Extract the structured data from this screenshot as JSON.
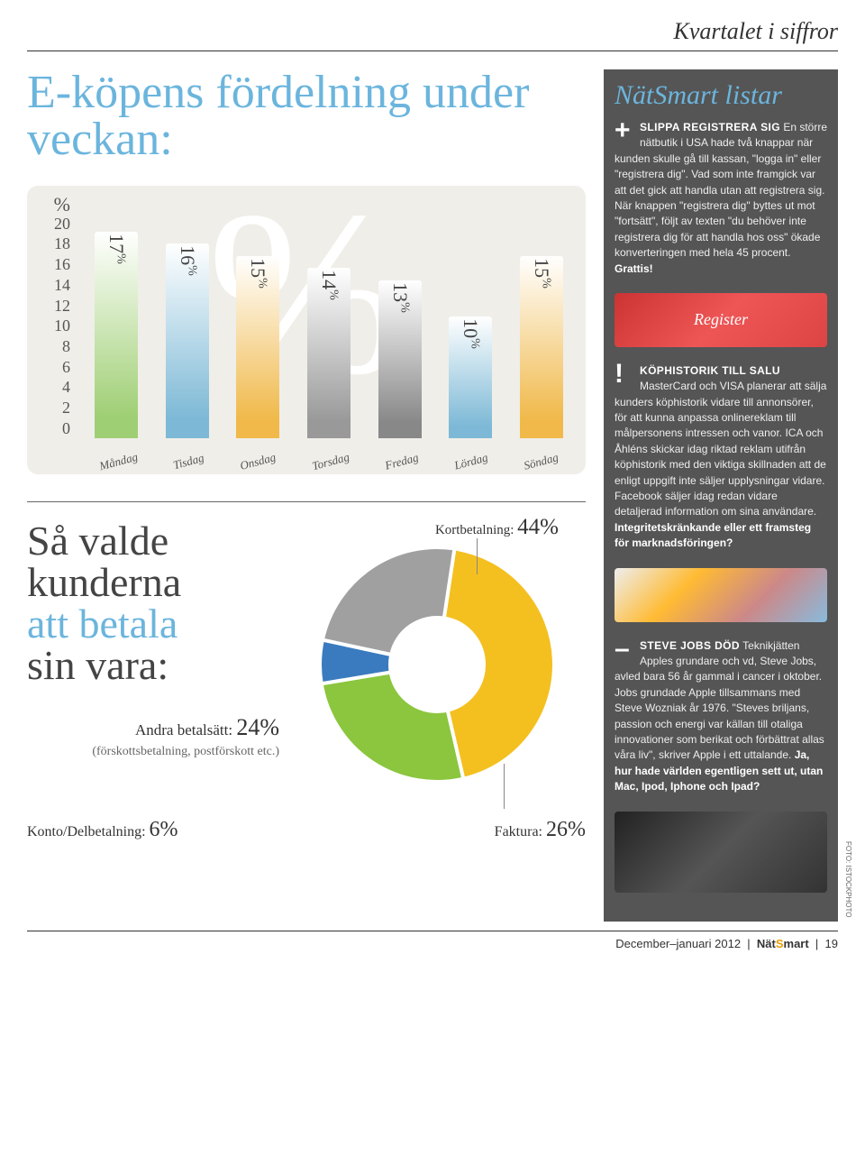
{
  "header": {
    "title": "Kvartalet i siffror"
  },
  "main_title": "E-köpens fördelning under veckan:",
  "bar_chart": {
    "type": "bar",
    "y_unit": "%",
    "y_ticks": [
      20,
      18,
      16,
      14,
      12,
      10,
      8,
      6,
      4,
      2,
      0
    ],
    "y_max": 20,
    "bg_percent": "%",
    "bars": [
      {
        "day": "Måndag",
        "value": 17,
        "label": "17",
        "color": "#9fcf74"
      },
      {
        "day": "Tisdag",
        "value": 16,
        "label": "16",
        "color": "#7db9d6"
      },
      {
        "day": "Onsdag",
        "value": 15,
        "label": "15",
        "color": "#f0b94a"
      },
      {
        "day": "Torsdag",
        "value": 14,
        "label": "14",
        "color": "#999999"
      },
      {
        "day": "Fredag",
        "value": 13,
        "label": "13",
        "color": "#888888"
      },
      {
        "day": "Lördag",
        "value": 10,
        "label": "10",
        "color": "#7db9d6"
      },
      {
        "day": "Söndag",
        "value": 15,
        "label": "15",
        "color": "#f0b94a"
      }
    ]
  },
  "donut_section": {
    "title_lines": [
      "Så valde",
      "kunderna",
      "att betala",
      "sin vara:"
    ],
    "accent_line_index": 2,
    "other": {
      "text": "Andra betalsätt:",
      "value": "24%",
      "sub": "(förskottsbetalning, postförskott etc.)"
    },
    "top_label": {
      "text": "Kortbetalning:",
      "value": "44%"
    },
    "bottom_left": {
      "text": "Konto/Delbetalning:",
      "value": "6%"
    },
    "bottom_right": {
      "text": "Faktura:",
      "value": "26%"
    },
    "slices": [
      {
        "name": "Kortbetalning",
        "value": 44,
        "color": "#f4c020"
      },
      {
        "name": "Faktura",
        "value": 26,
        "color": "#8bc63e"
      },
      {
        "name": "Konto/Delbet",
        "value": 6,
        "color": "#3a7bbf"
      },
      {
        "name": "Andra",
        "value": 24,
        "color": "#a0a0a0"
      }
    ],
    "donut": {
      "outer_r": 130,
      "inner_r": 52,
      "stroke": "#ffffff",
      "stroke_width": 4
    }
  },
  "sidebar": {
    "title": "NätSmart listar",
    "items": [
      {
        "symbol": "+",
        "image": "register",
        "lead": "SLIPPA REGISTRERA SIG",
        "body": "En större nätbutik i USA hade två knappar när kun­den skulle gå till kassan, \"logga in\" eller \"registrera dig\". Vad som inte framgick var att det gick att handla utan att registrera sig. När knappen \"registrera dig\" byttes ut mot \"fortsätt\", följt av texten \"du behöver inte registrera dig för att handla hos oss\" ökade konvertering­en med hela 45 procent.",
        "bold_tail": "Grattis!"
      },
      {
        "symbol": "!",
        "image": "cards",
        "lead": "KÖPHISTORIK TILL SALU",
        "body": "MasterCard och VISA planerar att sälja kunders köphistorik vidare till annonsörer, för att kunna anpassa onlinereklam till målpersonens intressen och vanor. ICA och Åhléns skickar idag riktad reklam utifrån köphis­torik med den viktiga skillnaden att de enligt uppgift inte säljer upplysningar vidare. Facebook säljer idag redan vidare detaljerad information om sina användare.",
        "bold_tail": "Integritetskränkande eller ett framsteg för marknadsföringen?"
      },
      {
        "symbol": "–",
        "image": "jobs",
        "lead": "STEVE JOBS DÖD",
        "body": "Teknikjätten Apples grundare och vd, Steve Jobs, avled bara 56 år gammal i cancer i oktober. Jobs grundade Apple tillsammans med Steve Wozniak år 1976. \"Steves briljans, passion och energi var källan till otaliga innovationer som berikat och förbättrat allas våra liv\", skriver Apple i ett uttalande.",
        "bold_tail": "Ja, hur hade världen egentligen sett ut, utan Mac, Ipod, Iphone och Ipad?"
      }
    ],
    "photo_credit": "FOTO: ISTOCKPHOTO"
  },
  "footer": {
    "date": "December–januari 2012",
    "brand_pre": "Nät",
    "brand_s": "S",
    "brand_post": "mart",
    "page": "19"
  }
}
